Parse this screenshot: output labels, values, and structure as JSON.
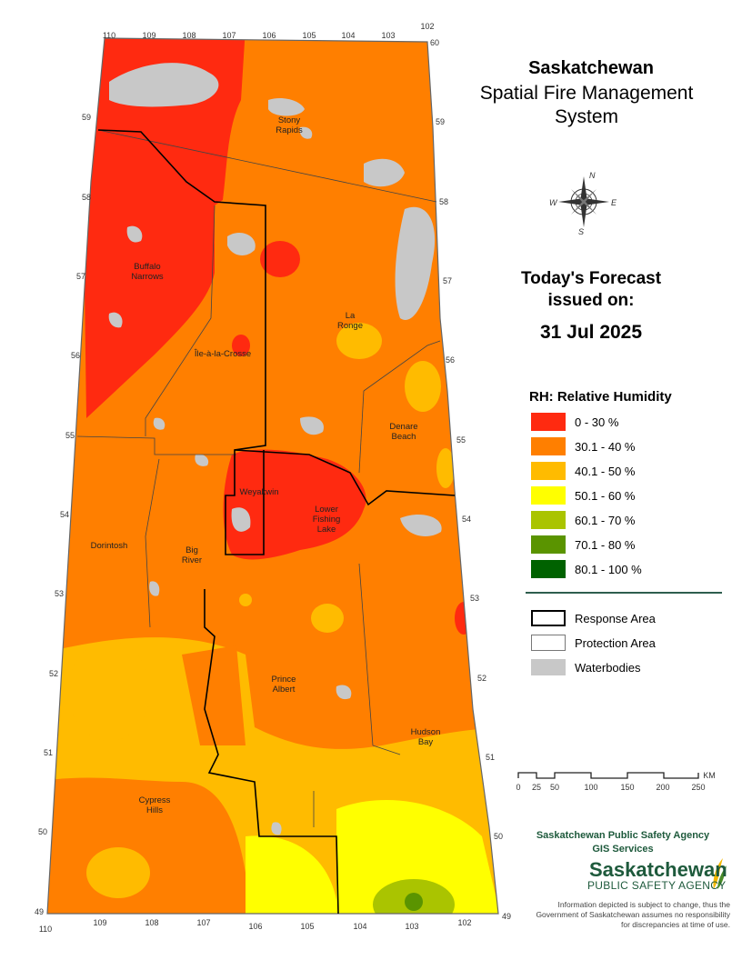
{
  "title": {
    "line1": "Saskatchewan",
    "line2": "Spatial Fire Management",
    "line3": "System"
  },
  "forecast": {
    "line1": "Today's Forecast",
    "line2": "issued on:",
    "date": "31 Jul 2025"
  },
  "legend": {
    "title": "RH: Relative Humidity",
    "classes": [
      {
        "label": "0 - 30 %",
        "color": "#ff2a10"
      },
      {
        "label": "30.1 - 40 %",
        "color": "#ff7f00"
      },
      {
        "label": "40.1 - 50 %",
        "color": "#ffbb00"
      },
      {
        "label": "50.1 - 60 %",
        "color": "#ffff00"
      },
      {
        "label": "60.1 - 70 %",
        "color": "#aac400"
      },
      {
        "label": "70.1 - 80 %",
        "color": "#5a9400"
      },
      {
        "label": "80.1 - 100 %",
        "color": "#006200"
      }
    ],
    "features": [
      {
        "label": "Response Area"
      },
      {
        "label": "Protection Area"
      },
      {
        "label": "Waterbodies",
        "color": "#c8c8c8"
      }
    ]
  },
  "scale": {
    "ticks": [
      "0",
      "25",
      "50",
      "100",
      "150",
      "200",
      "250"
    ],
    "unit": "KM"
  },
  "compass": {
    "n": "N",
    "s": "S",
    "e": "E",
    "w": "W"
  },
  "longitudes_top": [
    "110",
    "109",
    "108",
    "107",
    "106",
    "105",
    "104",
    "103",
    "102"
  ],
  "longitudes_bottom": [
    "110",
    "109",
    "108",
    "107",
    "106",
    "105",
    "104",
    "103",
    "102"
  ],
  "latitudes": [
    "60",
    "59",
    "58",
    "57",
    "56",
    "55",
    "54",
    "53",
    "52",
    "51",
    "50",
    "49"
  ],
  "places": [
    {
      "name": "Stony\nRapids"
    },
    {
      "name": "Buffalo\nNarrows"
    },
    {
      "name": "La\nRonge"
    },
    {
      "name": "Île-à-la-Crosse"
    },
    {
      "name": "Denare\nBeach"
    },
    {
      "name": "Weyakwin"
    },
    {
      "name": "Lower\nFishing\nLake"
    },
    {
      "name": "Dorintosh"
    },
    {
      "name": "Big\nRiver"
    },
    {
      "name": "Prince\nAlbert"
    },
    {
      "name": "Hudson\nBay"
    },
    {
      "name": "Cypress\nHills"
    }
  ],
  "agency": {
    "line1": "Saskatchewan Public Safety Agency",
    "line2": "GIS  Services",
    "logo_main": "Saskatchewan",
    "logo_sub": "PUBLIC SAFETY AGENCY"
  },
  "disclaimer": "Information depicted is subject to change, thus the Government of Saskatchewan assumes no responsibility for discrepancies at time of use."
}
